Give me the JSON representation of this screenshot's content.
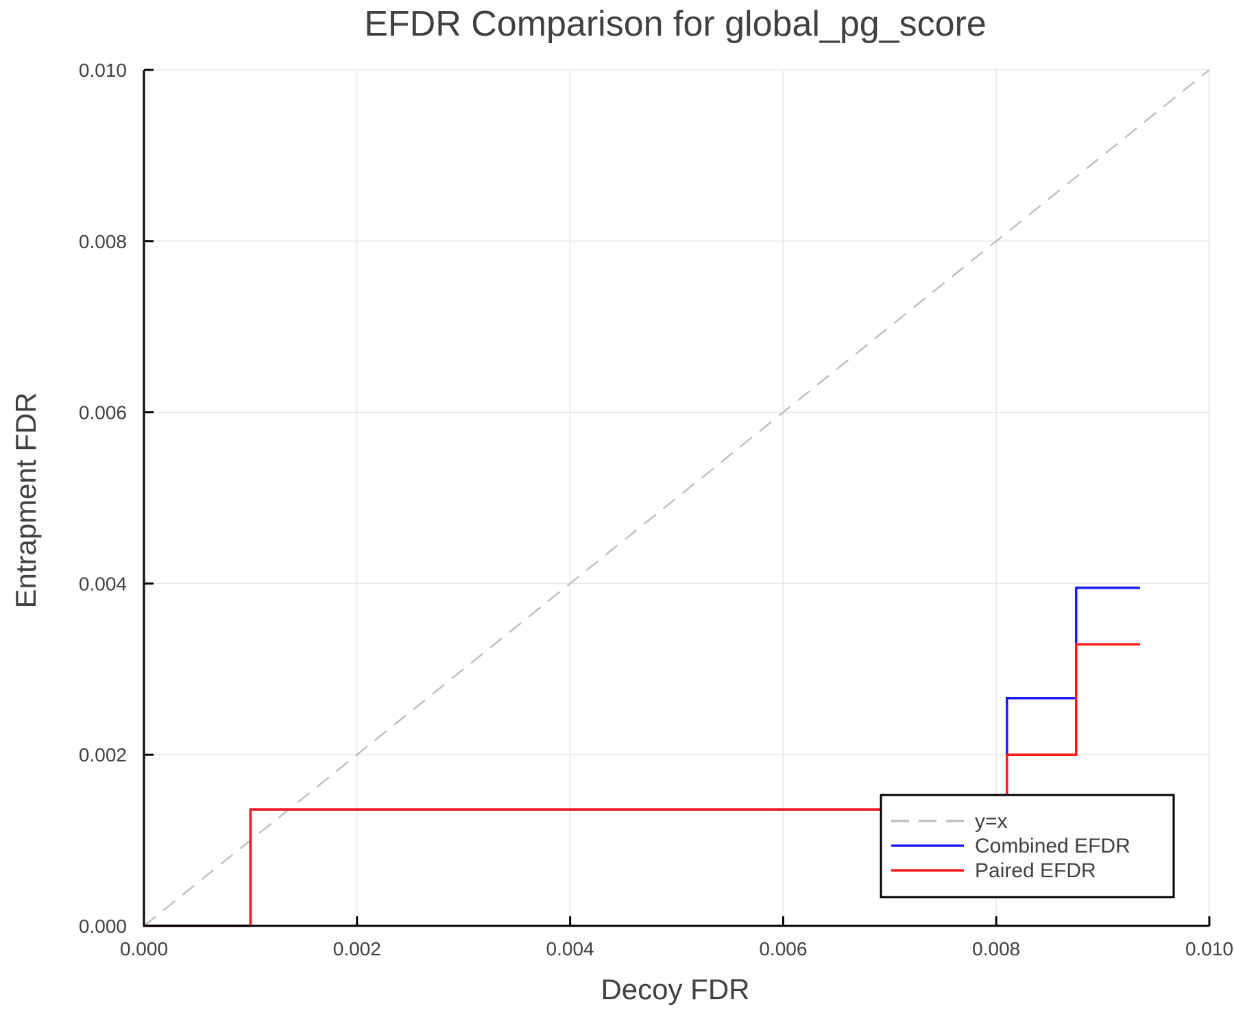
{
  "chart_data": {
    "type": "line",
    "title": "EFDR Comparison for global_pg_score",
    "xlabel": "Decoy FDR",
    "ylabel": "Entrapment FDR",
    "xlim": [
      0,
      0.01
    ],
    "ylim": [
      0,
      0.01
    ],
    "xticks": [
      "0.000",
      "0.002",
      "0.004",
      "0.006",
      "0.008",
      "0.010"
    ],
    "yticks": [
      "0.000",
      "0.002",
      "0.004",
      "0.006",
      "0.008",
      "0.010"
    ],
    "grid": true,
    "legend_position": "bottom-right",
    "step": "post",
    "series": [
      {
        "name": "y=x",
        "style": "dashed",
        "color": "#bfbfbf",
        "x": [
          0,
          0.01
        ],
        "y": [
          0,
          0.01
        ]
      },
      {
        "name": "Combined EFDR",
        "style": "solid",
        "color": "#1a1aff",
        "x": [
          0,
          0.001,
          0.0081,
          0.00875,
          0.00935
        ],
        "y": [
          0,
          0.00136,
          0.00266,
          0.00395,
          0.00395
        ]
      },
      {
        "name": "Paired EFDR",
        "style": "solid",
        "color": "#ff1a1a",
        "x": [
          0,
          0.001,
          0.0081,
          0.00875,
          0.00935
        ],
        "y": [
          0,
          0.00136,
          0.002,
          0.00329,
          0.00329
        ]
      }
    ]
  }
}
